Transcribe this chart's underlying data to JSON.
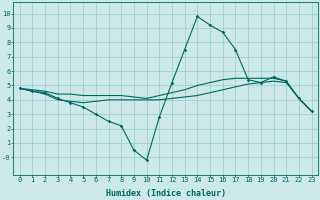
{
  "title": "",
  "xlabel": "Humidex (Indice chaleur)",
  "xlim": [
    -0.5,
    23.5
  ],
  "ylim": [
    -1.2,
    10.8
  ],
  "xticks": [
    0,
    1,
    2,
    3,
    4,
    5,
    6,
    7,
    8,
    9,
    10,
    11,
    12,
    13,
    14,
    15,
    16,
    17,
    18,
    19,
    20,
    21,
    22,
    23
  ],
  "yticks": [
    0,
    1,
    2,
    3,
    4,
    5,
    6,
    7,
    8,
    9,
    10
  ],
  "ytick_labels": [
    "-0",
    "1",
    "2",
    "3",
    "4",
    "5",
    "6",
    "7",
    "8",
    "9",
    "10"
  ],
  "bg_color": "#cce8e8",
  "grid_color": "#99cccc",
  "line_color": "#006666",
  "line1_x": [
    0,
    1,
    2,
    3,
    4,
    5,
    6,
    7,
    8,
    9,
    10,
    11,
    12,
    13,
    14,
    15,
    16,
    17,
    18,
    19,
    20,
    21,
    22,
    23
  ],
  "line1_y": [
    4.8,
    4.6,
    4.5,
    4.1,
    3.8,
    3.5,
    3.0,
    2.5,
    2.2,
    0.5,
    -0.2,
    2.8,
    5.2,
    7.5,
    9.8,
    9.2,
    8.7,
    7.5,
    5.4,
    5.2,
    5.6,
    5.3,
    4.1,
    3.2
  ],
  "line2_x": [
    0,
    1,
    2,
    3,
    4,
    5,
    6,
    7,
    8,
    9,
    10,
    11,
    12,
    13,
    14,
    15,
    16,
    17,
    18,
    19,
    20,
    21,
    22,
    23
  ],
  "line2_y": [
    4.8,
    4.6,
    4.4,
    4.0,
    3.9,
    3.8,
    3.9,
    4.0,
    4.0,
    4.0,
    4.0,
    4.0,
    4.1,
    4.2,
    4.3,
    4.5,
    4.7,
    4.9,
    5.1,
    5.2,
    5.3,
    5.2,
    4.1,
    3.2
  ],
  "line3_x": [
    0,
    1,
    2,
    3,
    4,
    5,
    6,
    7,
    8,
    9,
    10,
    11,
    12,
    13,
    14,
    15,
    16,
    17,
    18,
    19,
    20,
    21,
    22,
    23
  ],
  "line3_y": [
    4.8,
    4.7,
    4.6,
    4.4,
    4.4,
    4.3,
    4.3,
    4.3,
    4.3,
    4.2,
    4.1,
    4.3,
    4.5,
    4.7,
    5.0,
    5.2,
    5.4,
    5.5,
    5.5,
    5.5,
    5.5,
    5.3,
    4.1,
    3.2
  ],
  "tick_fontsize": 5.0,
  "xlabel_fontsize": 6.0
}
